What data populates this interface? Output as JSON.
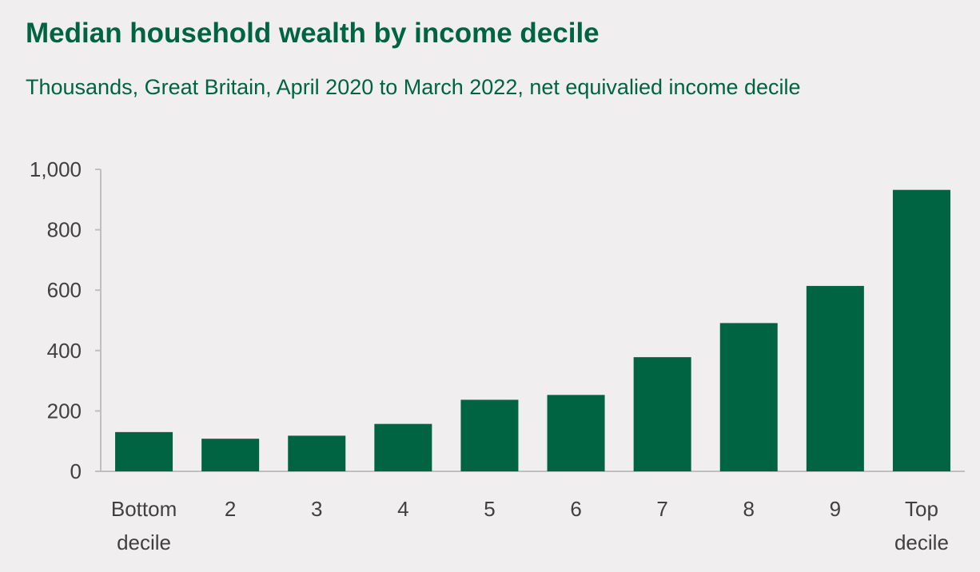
{
  "chart_data": {
    "type": "bar",
    "title": "Median household wealth by income decile",
    "subtitle": "Thousands,  Great Britain, April 2020 to March 2022, net equivalied income decile",
    "categories": [
      [
        "Bottom",
        "decile"
      ],
      [
        "2"
      ],
      [
        "3"
      ],
      [
        "4"
      ],
      [
        "5"
      ],
      [
        "6"
      ],
      [
        "7"
      ],
      [
        "8"
      ],
      [
        "9"
      ],
      [
        "Top",
        "decile"
      ]
    ],
    "values": [
      130,
      108,
      118,
      157,
      237,
      253,
      378,
      491,
      614,
      932
    ],
    "y_ticks": [
      {
        "value": 0,
        "label": "0"
      },
      {
        "value": 200,
        "label": "200"
      },
      {
        "value": 400,
        "label": "400"
      },
      {
        "value": 600,
        "label": "600"
      },
      {
        "value": 800,
        "label": "800"
      },
      {
        "value": 1000,
        "label": "1,000"
      }
    ],
    "ylim": [
      0,
      1000
    ],
    "xlabel": "",
    "ylabel": "",
    "grid": false,
    "legend": "none",
    "colors": {
      "bar": "#006341",
      "title": "#006341",
      "text": "#404040",
      "axis": "#bfbfbf",
      "background": "#f0eeee"
    }
  }
}
